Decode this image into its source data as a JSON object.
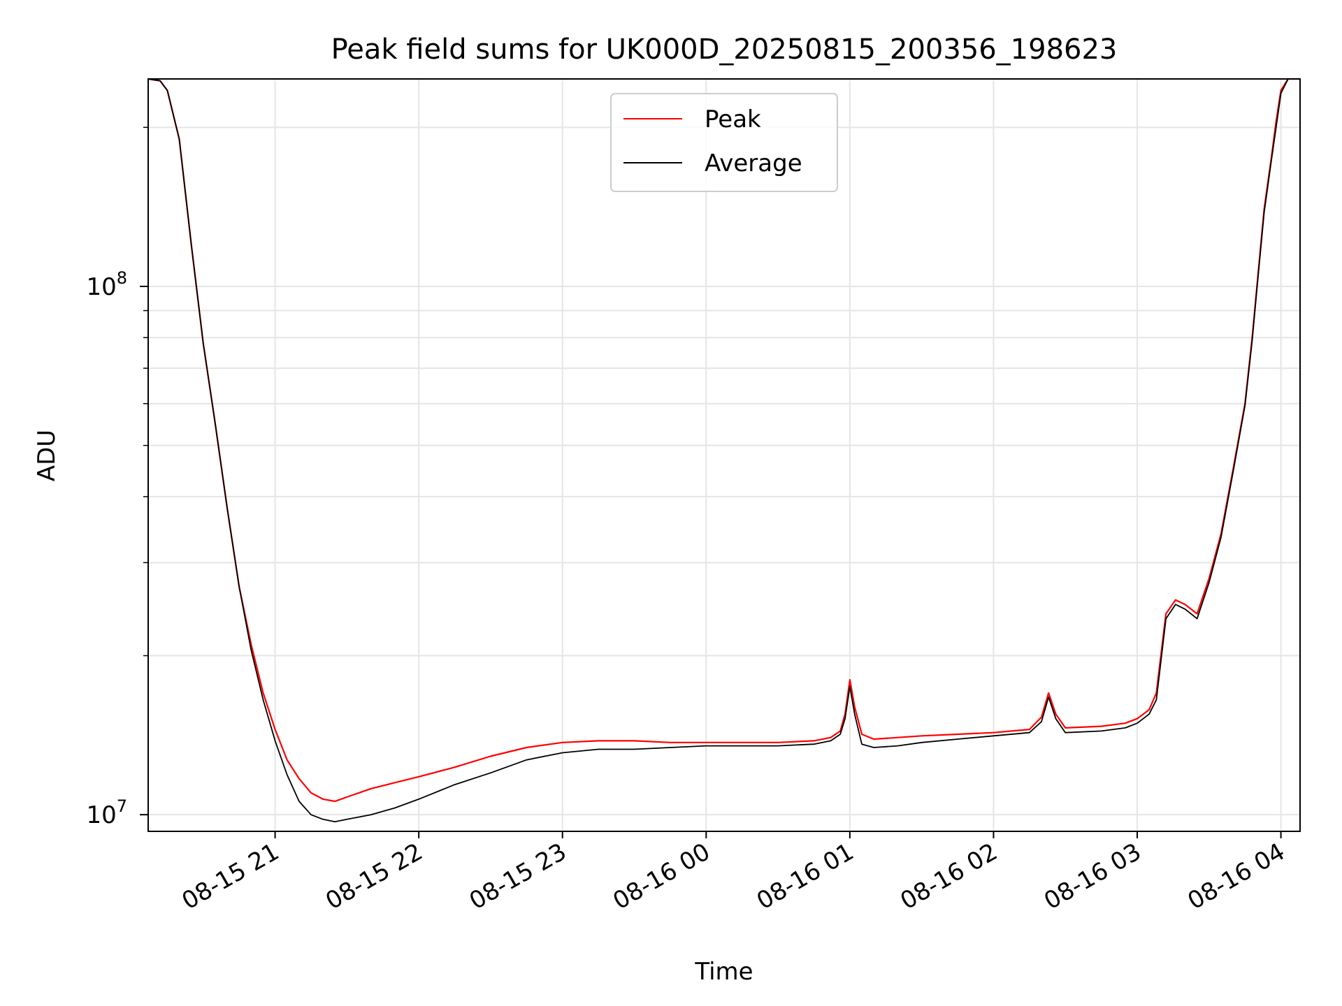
{
  "chart_data": {
    "type": "line",
    "title": "Peak field sums for UK000D_20250815_200356_198623",
    "xlabel": "Time",
    "ylabel": "ADU",
    "y_scale": "log",
    "ylim": [
      9300000,
      247000000
    ],
    "xlim": [
      "08-15 20:07",
      "08-16 04:08"
    ],
    "x_ticks": [
      "08-15 21",
      "08-15 22",
      "08-15 23",
      "08-16 00",
      "08-16 01",
      "08-16 02",
      "08-16 03",
      "08-16 04"
    ],
    "y_ticks": [
      {
        "value": 10000000,
        "base": "10",
        "exp": "7"
      },
      {
        "value": 100000000,
        "base": "10",
        "exp": "8"
      }
    ],
    "grid": true,
    "legend_position": "top-center",
    "series": [
      {
        "name": "Peak",
        "color": "#ff0000",
        "x": [
          "08-15 20:07",
          "08-15 20:12",
          "08-15 20:15",
          "08-15 20:20",
          "08-15 20:25",
          "08-15 20:30",
          "08-15 20:35",
          "08-15 20:40",
          "08-15 20:45",
          "08-15 20:50",
          "08-15 20:55",
          "08-15 21:00",
          "08-15 21:05",
          "08-15 21:10",
          "08-15 21:15",
          "08-15 21:20",
          "08-15 21:25",
          "08-15 21:30",
          "08-15 21:35",
          "08-15 21:40",
          "08-15 21:50",
          "08-15 22:00",
          "08-15 22:15",
          "08-15 22:30",
          "08-15 22:45",
          "08-15 23:00",
          "08-15 23:15",
          "08-15 23:30",
          "08-15 23:45",
          "08-16 00:00",
          "08-16 00:15",
          "08-16 00:30",
          "08-16 00:45",
          "08-16 00:52",
          "08-16 00:56",
          "08-16 00:58",
          "08-16 01:00",
          "08-16 01:02",
          "08-16 01:05",
          "08-16 01:10",
          "08-16 01:20",
          "08-16 01:30",
          "08-16 01:45",
          "08-16 02:00",
          "08-16 02:15",
          "08-16 02:20",
          "08-16 02:23",
          "08-16 02:26",
          "08-16 02:30",
          "08-16 02:45",
          "08-16 02:55",
          "08-16 03:00",
          "08-16 03:05",
          "08-16 03:08",
          "08-16 03:12",
          "08-16 03:16",
          "08-16 03:20",
          "08-16 03:25",
          "08-16 03:30",
          "08-16 03:35",
          "08-16 03:40",
          "08-16 03:45",
          "08-16 03:48",
          "08-16 03:50",
          "08-16 03:53",
          "08-16 03:56",
          "08-16 03:58",
          "08-16 04:00",
          "08-16 04:03",
          "08-16 04:08"
        ],
        "y": [
          247000000,
          245000000,
          235000000,
          190000000,
          120000000,
          78000000,
          55000000,
          38000000,
          27000000,
          21000000,
          17000000,
          14500000,
          12700000,
          11700000,
          11000000,
          10700000,
          10600000,
          10800000,
          11000000,
          11200000,
          11500000,
          11800000,
          12300000,
          12900000,
          13400000,
          13700000,
          13800000,
          13800000,
          13700000,
          13700000,
          13700000,
          13700000,
          13800000,
          14000000,
          14400000,
          15500000,
          18000000,
          16000000,
          14200000,
          13900000,
          14000000,
          14100000,
          14200000,
          14300000,
          14500000,
          15300000,
          17000000,
          15500000,
          14600000,
          14700000,
          14900000,
          15200000,
          15800000,
          17000000,
          24000000,
          25500000,
          25000000,
          24000000,
          28000000,
          34000000,
          45000000,
          60000000,
          80000000,
          100000000,
          140000000,
          175000000,
          205000000,
          235000000,
          247000000,
          247000000
        ]
      },
      {
        "name": "Average",
        "color": "#000000",
        "x": [
          "08-15 20:07",
          "08-15 20:12",
          "08-15 20:15",
          "08-15 20:20",
          "08-15 20:25",
          "08-15 20:30",
          "08-15 20:35",
          "08-15 20:40",
          "08-15 20:45",
          "08-15 20:50",
          "08-15 20:55",
          "08-15 21:00",
          "08-15 21:05",
          "08-15 21:10",
          "08-15 21:15",
          "08-15 21:20",
          "08-15 21:25",
          "08-15 21:30",
          "08-15 21:35",
          "08-15 21:40",
          "08-15 21:50",
          "08-15 22:00",
          "08-15 22:15",
          "08-15 22:30",
          "08-15 22:45",
          "08-15 23:00",
          "08-15 23:15",
          "08-15 23:30",
          "08-15 23:45",
          "08-16 00:00",
          "08-16 00:15",
          "08-16 00:30",
          "08-16 00:45",
          "08-16 00:52",
          "08-16 00:56",
          "08-16 00:58",
          "08-16 01:00",
          "08-16 01:02",
          "08-16 01:05",
          "08-16 01:10",
          "08-16 01:20",
          "08-16 01:30",
          "08-16 01:45",
          "08-16 02:00",
          "08-16 02:15",
          "08-16 02:20",
          "08-16 02:23",
          "08-16 02:26",
          "08-16 02:30",
          "08-16 02:45",
          "08-16 02:55",
          "08-16 03:00",
          "08-16 03:05",
          "08-16 03:08",
          "08-16 03:12",
          "08-16 03:16",
          "08-16 03:20",
          "08-16 03:25",
          "08-16 03:30",
          "08-16 03:35",
          "08-16 03:40",
          "08-16 03:45",
          "08-16 03:48",
          "08-16 03:50",
          "08-16 03:53",
          "08-16 03:56",
          "08-16 03:58",
          "08-16 04:00",
          "08-16 04:03",
          "08-16 04:08"
        ],
        "y": [
          247000000,
          245000000,
          235000000,
          190000000,
          120000000,
          78000000,
          55000000,
          38000000,
          27000000,
          20500000,
          16500000,
          13800000,
          11900000,
          10600000,
          10000000,
          9800000,
          9700000,
          9800000,
          9900000,
          10000000,
          10300000,
          10700000,
          11400000,
          12000000,
          12700000,
          13100000,
          13300000,
          13300000,
          13400000,
          13500000,
          13500000,
          13500000,
          13600000,
          13800000,
          14200000,
          15200000,
          17500000,
          15500000,
          13600000,
          13400000,
          13500000,
          13700000,
          13900000,
          14100000,
          14300000,
          15000000,
          16700000,
          15200000,
          14300000,
          14400000,
          14600000,
          14900000,
          15500000,
          16500000,
          23500000,
          25000000,
          24500000,
          23500000,
          27500000,
          33500000,
          44500000,
          59500000,
          79000000,
          99000000,
          138000000,
          173000000,
          200000000,
          232000000,
          247000000,
          247000000
        ]
      }
    ]
  }
}
